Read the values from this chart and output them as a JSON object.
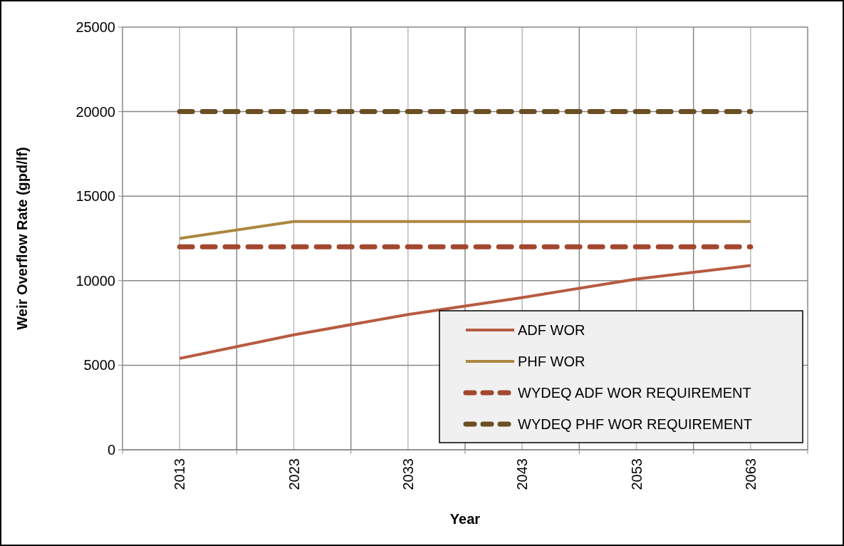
{
  "chart_data": {
    "type": "line",
    "xlabel": "Year",
    "ylabel": "Weir Overflow Rate (gpd/lf)",
    "categories": [
      "2013",
      "2023",
      "2033",
      "2043",
      "2053",
      "2063"
    ],
    "series": [
      {
        "name": "ADF WOR",
        "color": "#b75b40",
        "values": [
          5400,
          6800,
          8000,
          9000,
          10100,
          10900
        ]
      },
      {
        "name": "PHF WOR",
        "color": "#ab8840",
        "values": [
          12500,
          13500,
          13500,
          13500,
          13500,
          13500
        ]
      },
      {
        "name": "WYDEQ ADF WOR REQUIREMENT",
        "color": "#a3472f",
        "values": [
          12000,
          12000,
          12000,
          12000,
          12000,
          12000
        ],
        "line_style": "dashed"
      },
      {
        "name": "WYDEQ PHF WOR REQUIREMENT",
        "color": "#6b4f23",
        "values": [
          20000,
          20000,
          20000,
          20000,
          20000,
          20000
        ],
        "line_style": "dashed"
      }
    ],
    "ylim": [
      0,
      25000
    ],
    "yticks": [
      0,
      5000,
      10000,
      15000,
      20000,
      25000
    ],
    "grid": true,
    "legend": "bottom right"
  }
}
